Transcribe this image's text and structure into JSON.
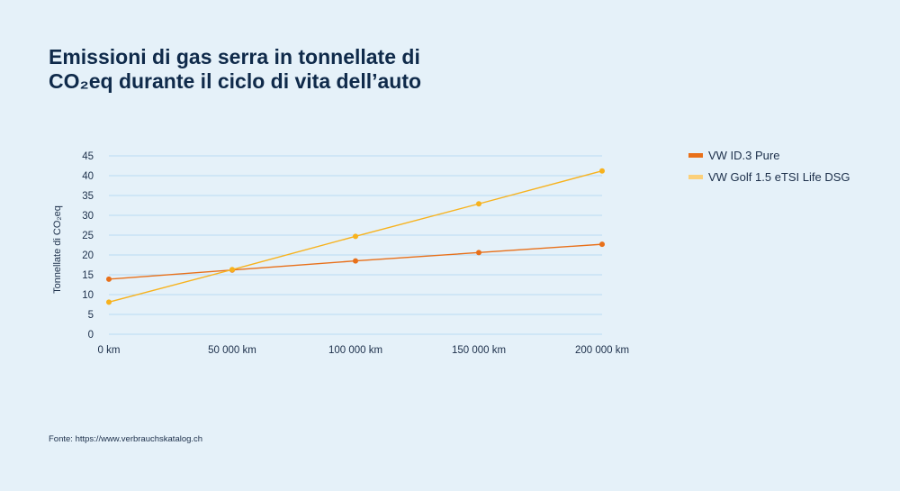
{
  "page": {
    "title_line1": "Emissioni di gas serra in tonnellate di",
    "title_line2": "CO₂eq durante il ciclo di vita dell’auto",
    "source": "Fonte: https://www.verbrauchskatalog.ch"
  },
  "colors": {
    "background": "#e5f1f9",
    "grid": "#b9dcf3",
    "series_1": "#e8701a",
    "series_2": "#f7b21d",
    "legend_swatch_2": "#fbd07a"
  },
  "chart_data": {
    "type": "line",
    "title": "Emissioni di gas serra in tonnellate di CO₂eq durante il ciclo di vita dell’auto",
    "xlabel": "",
    "ylabel": "Tonnellate di CO₂eq",
    "x": [
      0,
      50000,
      100000,
      150000,
      200000
    ],
    "x_tick_labels": [
      "0 km",
      "50 000 km",
      "100 000 km",
      "150 000 km",
      "200 000 km"
    ],
    "xlim": [
      0,
      200000
    ],
    "ylim": [
      0,
      45
    ],
    "y_ticks": [
      0,
      5,
      10,
      15,
      20,
      25,
      30,
      35,
      40,
      45
    ],
    "grid": true,
    "legend_position": "right",
    "series": [
      {
        "name": "VW ID.3 Pure",
        "values": [
          13.9,
          16.2,
          18.5,
          20.6,
          22.7
        ]
      },
      {
        "name": "VW Golf 1.5 eTSI Life DSG",
        "values": [
          8.1,
          16.3,
          24.7,
          32.9,
          41.2
        ]
      }
    ]
  }
}
